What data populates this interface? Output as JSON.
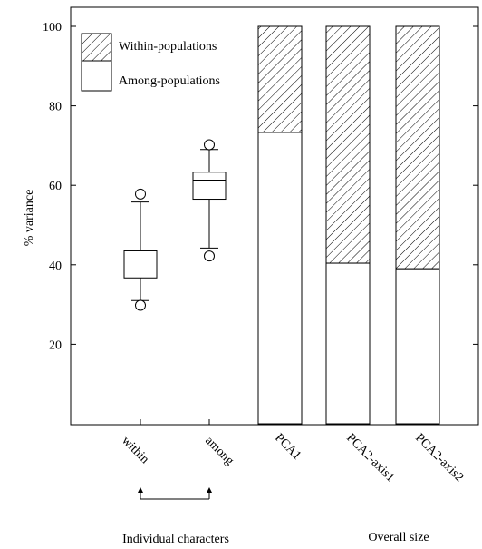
{
  "chart_data": {
    "type": "bar",
    "ylabel": "% variance",
    "ylim": [
      0,
      100
    ],
    "yticks": [
      20,
      40,
      60,
      80,
      100
    ],
    "legend": {
      "position": "top-left",
      "entries": [
        {
          "label": "Within-populations",
          "fill": "hatched"
        },
        {
          "label": "Among-populations",
          "fill": "white"
        }
      ]
    },
    "boxplots": [
      {
        "category": "within",
        "whisker_low": 31,
        "q1": 36.7,
        "median": 38.7,
        "q3": 43.5,
        "whisker_high": 55.8,
        "outliers": [
          29.8,
          57.8
        ]
      },
      {
        "category": "among",
        "whisker_low": 44.2,
        "q1": 56.5,
        "median": 61.3,
        "q3": 63.3,
        "whisker_high": 69,
        "outliers": [
          42.2,
          70.2
        ]
      }
    ],
    "stacked_bars": {
      "categories": [
        "PCA1",
        "PCA2-axis1",
        "PCA2-axis2"
      ],
      "series": [
        {
          "name": "Among-populations",
          "values": [
            73.3,
            40.4,
            39.0
          ]
        },
        {
          "name": "Within-populations",
          "values": [
            26.7,
            59.6,
            61.0
          ]
        }
      ]
    },
    "group_labels": {
      "individual": "Individual characters",
      "overall": "Overall size"
    }
  }
}
